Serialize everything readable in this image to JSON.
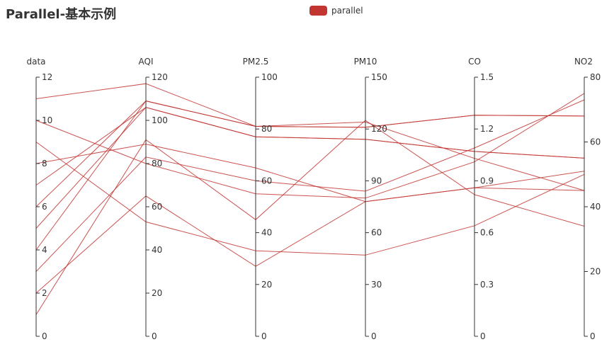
{
  "chart_data": {
    "type": "parallel",
    "title": "Parallel-基本示例",
    "legend": {
      "entries": [
        "parallel"
      ],
      "placement": "top-center"
    },
    "colors": {
      "series": "#c23531",
      "axis": "#333333"
    },
    "axes": [
      {
        "name": "data",
        "min": 0,
        "max": 12,
        "ticks": [
          0,
          2,
          4,
          6,
          8,
          10,
          12
        ]
      },
      {
        "name": "AQI",
        "min": 0,
        "max": 120,
        "ticks": [
          0,
          20,
          40,
          60,
          80,
          100,
          120
        ]
      },
      {
        "name": "PM2.5",
        "min": 0,
        "max": 100,
        "ticks": [
          0,
          20,
          40,
          60,
          80,
          100
        ]
      },
      {
        "name": "PM10",
        "min": 0,
        "max": 150,
        "ticks": [
          0,
          30,
          60,
          90,
          120,
          150
        ]
      },
      {
        "name": "CO",
        "min": 0,
        "max": 1.5,
        "ticks": [
          "0",
          "0.3",
          "0.6",
          "0.9",
          "1.2",
          "1.5"
        ]
      },
      {
        "name": "NO2",
        "min": 0,
        "max": 80,
        "ticks": [
          0,
          20,
          40,
          60,
          80
        ]
      }
    ],
    "series": [
      {
        "name": "parallel",
        "data": [
          [
            1,
            91,
            45,
            125,
            0.82,
            34
          ],
          [
            2,
            65,
            27,
            78,
            0.86,
            45
          ],
          [
            3,
            83,
            60,
            84,
            1.09,
            73
          ],
          [
            4,
            109,
            81,
            121,
            1.28,
            68
          ],
          [
            5,
            106,
            77,
            114,
            1.07,
            55
          ],
          [
            6,
            109,
            81,
            121,
            1.28,
            68
          ],
          [
            7,
            106,
            77,
            114,
            1.07,
            55
          ],
          [
            8,
            89,
            65,
            78,
            0.86,
            51
          ],
          [
            9,
            53,
            33,
            47,
            0.64,
            50
          ],
          [
            10,
            80,
            55,
            80,
            1.01,
            75
          ],
          [
            11,
            117,
            81,
            124,
            1.03,
            45
          ]
        ]
      }
    ]
  }
}
